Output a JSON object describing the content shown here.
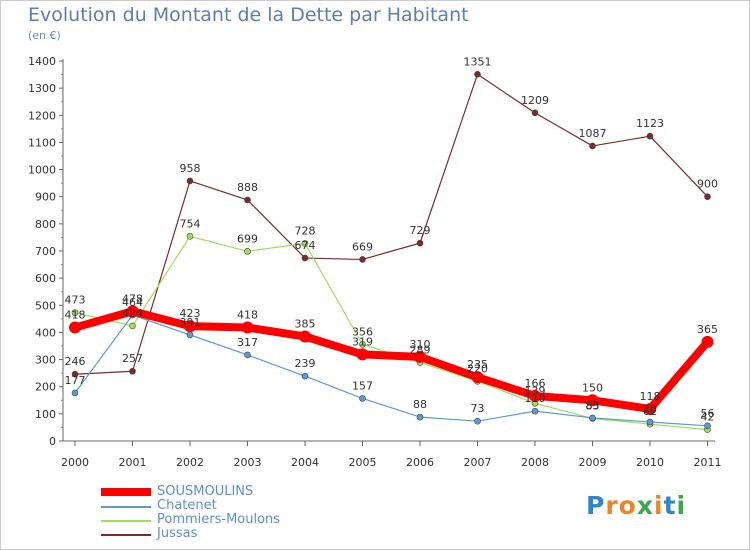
{
  "header": {
    "title": "Evolution du Montant de la Dette par Habitant",
    "unit": "(en €)"
  },
  "logo": {
    "text": "Proxiti",
    "letter_colors": [
      "#2f86c9",
      "#e8862a",
      "#e8862a",
      "#3aa84a",
      "#e8862a",
      "#2f86c9",
      "#3aa84a"
    ]
  },
  "chart_data": {
    "type": "line",
    "title": "Evolution du Montant de la Dette par Habitant",
    "subtitle": "(en €)",
    "x": [
      "2000",
      "2001",
      "2002",
      "2003",
      "2004",
      "2005",
      "2006",
      "2007",
      "2008",
      "2009",
      "2010",
      "2011"
    ],
    "ylim": [
      0,
      1400
    ],
    "yticks": [
      0,
      100,
      200,
      300,
      400,
      500,
      600,
      700,
      800,
      900,
      1000,
      1100,
      1200,
      1300,
      1400
    ],
    "grid": false,
    "legend_position": "bottom-left",
    "series": [
      {
        "name": "Jussas",
        "color": "#7b2b2b",
        "values": [
          246,
          257,
          958,
          888,
          674,
          669,
          729,
          1351,
          1209,
          1087,
          1123,
          900
        ],
        "labels": [
          "246",
          "257",
          "958",
          "888",
          "674",
          "669",
          "729",
          "1351",
          "1209",
          "1087",
          "1123",
          "900"
        ]
      },
      {
        "name": "Pommiers-Moulons",
        "color": "#9ae05a",
        "values": [
          473,
          424,
          754,
          699,
          728,
          356,
          289,
          220,
          139,
          83,
          62,
          42
        ],
        "labels": [
          "473",
          "424",
          "754",
          "699",
          "728",
          "356",
          "289",
          "220",
          "139",
          "83",
          "62",
          "42"
        ]
      },
      {
        "name": "Chatenet",
        "color": "#5b9bd5",
        "values": [
          177,
          464,
          391,
          317,
          239,
          157,
          88,
          73,
          110,
          85,
          70,
          56
        ],
        "labels": [
          "177",
          "464",
          "391",
          "317",
          "239",
          "157",
          "88",
          "73",
          "110",
          "85",
          "70",
          "56"
        ]
      },
      {
        "name": "SOUSMOULINS",
        "color": "#ff0000",
        "values": [
          418,
          478,
          423,
          418,
          385,
          319,
          310,
          235,
          166,
          150,
          118,
          365
        ],
        "labels": [
          "418",
          "478",
          "423",
          "418",
          "385",
          "319",
          "310",
          "235",
          "166",
          "150",
          "118",
          "365"
        ]
      }
    ]
  }
}
